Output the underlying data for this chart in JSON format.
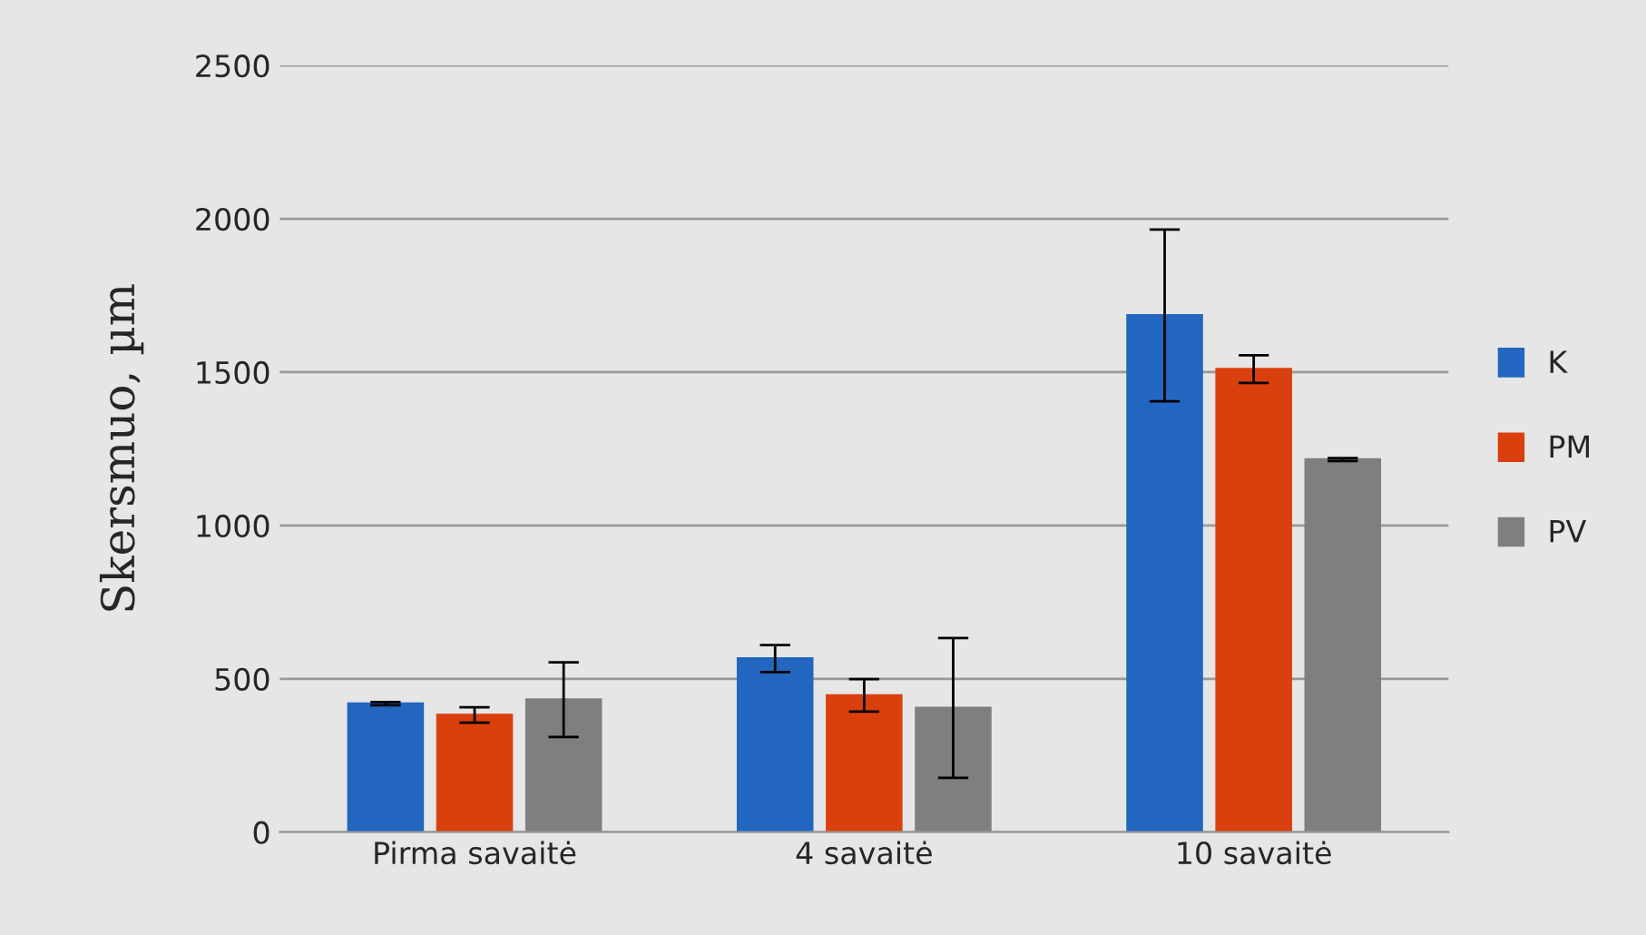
{
  "chart_data": {
    "type": "bar",
    "ylabel": "Skersmuo, µm",
    "categories": [
      "Pirma savaitė",
      "4 savaitė",
      "10 savaitė"
    ],
    "series": [
      {
        "name": "K",
        "color": "#2266c0",
        "values": [
          419,
          566,
          1685
        ],
        "errors": [
          5,
          44,
          280
        ]
      },
      {
        "name": "PM",
        "color": "#d9400e",
        "values": [
          382,
          446,
          1510
        ],
        "errors": [
          25,
          53,
          45
        ]
      },
      {
        "name": "PV",
        "color": "#7f7f7f",
        "values": [
          432,
          405,
          1215
        ],
        "errors": [
          122,
          228,
          5
        ]
      }
    ],
    "ylim": [
      0,
      2500
    ],
    "yticks": [
      0,
      500,
      1000,
      1500,
      2000,
      2500
    ],
    "grid": "y",
    "legend": "right"
  }
}
